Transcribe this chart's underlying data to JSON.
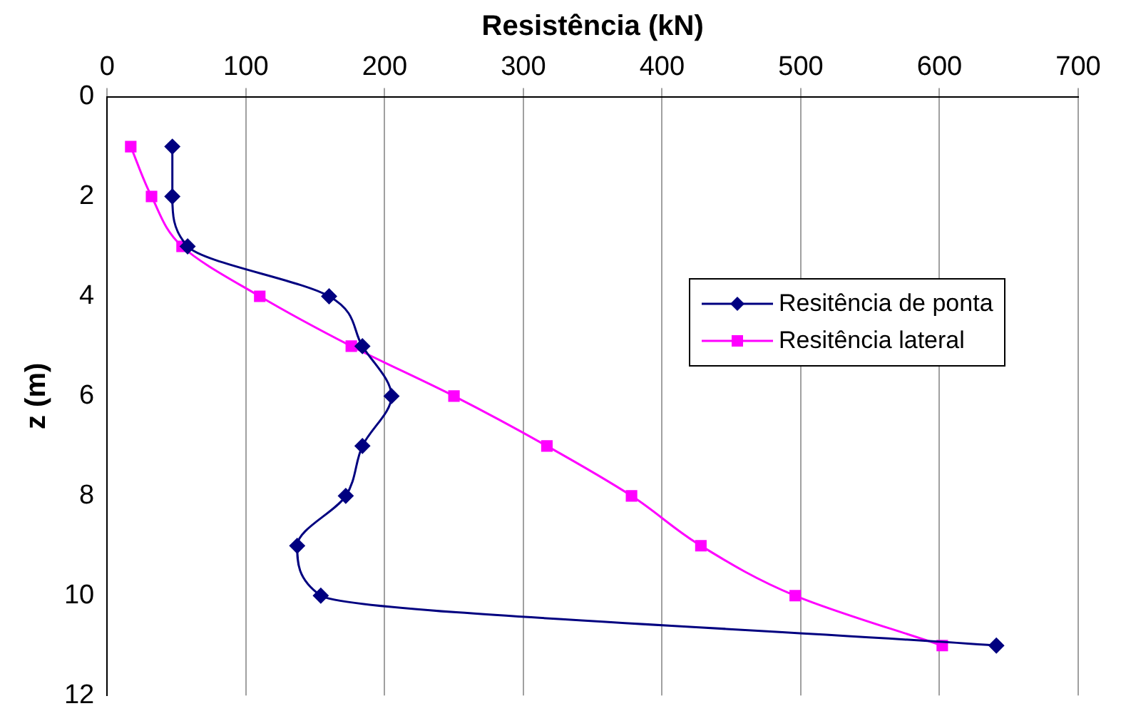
{
  "chart_data": {
    "type": "line",
    "orientation": "horizontal",
    "xlabel": "Resistência (kN)",
    "ylabel": "z (m)",
    "xlim": [
      0,
      700
    ],
    "xticks": [
      0,
      100,
      200,
      300,
      400,
      500,
      600,
      700
    ],
    "ylim": [
      12,
      0
    ],
    "yticks": [
      0,
      2,
      4,
      6,
      8,
      10,
      12
    ],
    "grid": "x",
    "legend": "right",
    "line_style": "solid",
    "series": [
      {
        "name": "Resitência de ponta",
        "color": "#000080",
        "marker": "diamond",
        "x": [
          1,
          2,
          3,
          4,
          5,
          6,
          7,
          8,
          9,
          10,
          11
        ],
        "values": [
          47,
          47,
          58,
          160,
          184,
          205,
          184,
          172,
          137,
          154,
          641
        ]
      },
      {
        "name": "Resitência lateral",
        "color": "#ff00ff",
        "marker": "square",
        "x": [
          1,
          2,
          3,
          4,
          5,
          6,
          7,
          8,
          9,
          10,
          11
        ],
        "values": [
          17,
          32,
          54,
          110,
          176,
          250,
          317,
          378,
          428,
          496,
          602
        ]
      }
    ]
  }
}
